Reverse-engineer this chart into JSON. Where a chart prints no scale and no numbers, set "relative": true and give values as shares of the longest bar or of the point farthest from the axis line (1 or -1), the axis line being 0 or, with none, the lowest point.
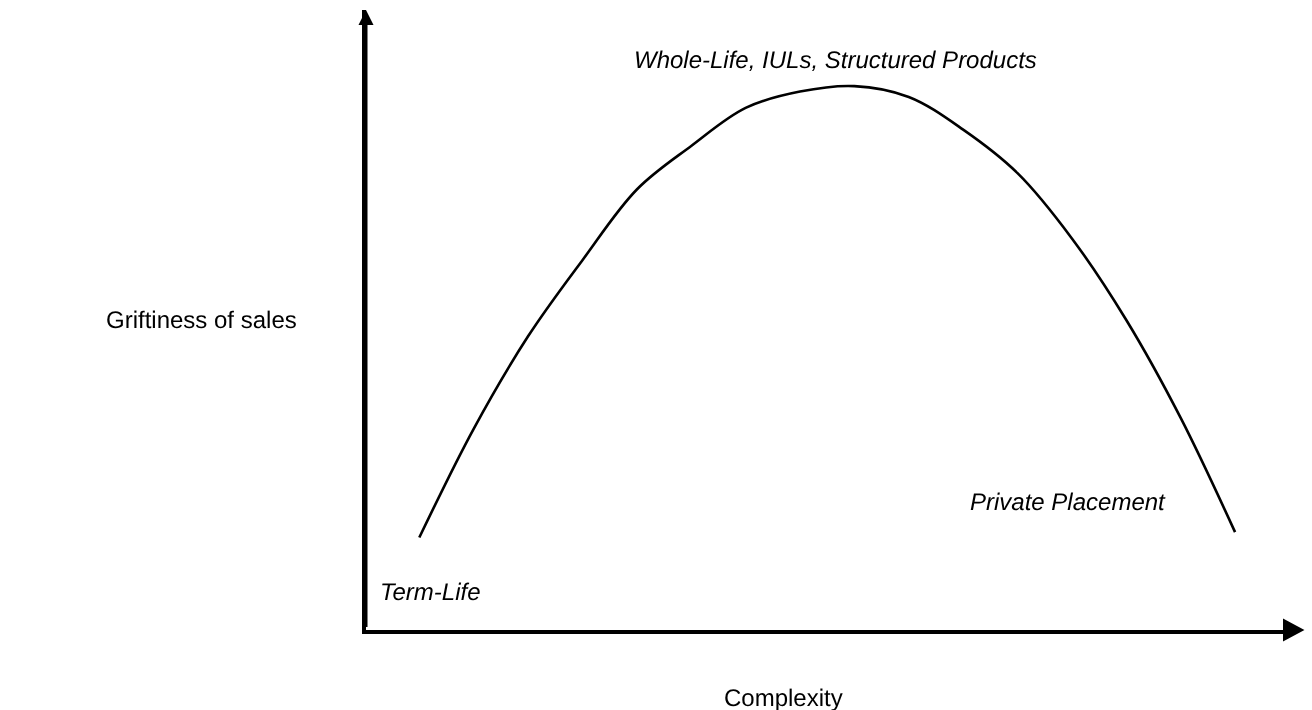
{
  "chart_data": {
    "type": "line",
    "relative": true,
    "xlabel": "Complexity",
    "ylabel": "Griftiness of sales",
    "categories": [
      null,
      null,
      null,
      null,
      null,
      null,
      null,
      null,
      null,
      null,
      null,
      null,
      null,
      null,
      null,
      null
    ],
    "values": [
      0.17,
      0.37,
      0.54,
      0.68,
      0.81,
      0.89,
      0.96,
      0.99,
      1.0,
      0.98,
      0.92,
      0.84,
      0.72,
      0.57,
      0.39,
      0.18
    ],
    "color": "#000000",
    "line_style": "solid",
    "marker": "none",
    "annotations": [
      "Whole-Life, IULs, Structured Products",
      "Term-Life",
      "Private Placement"
    ]
  }
}
